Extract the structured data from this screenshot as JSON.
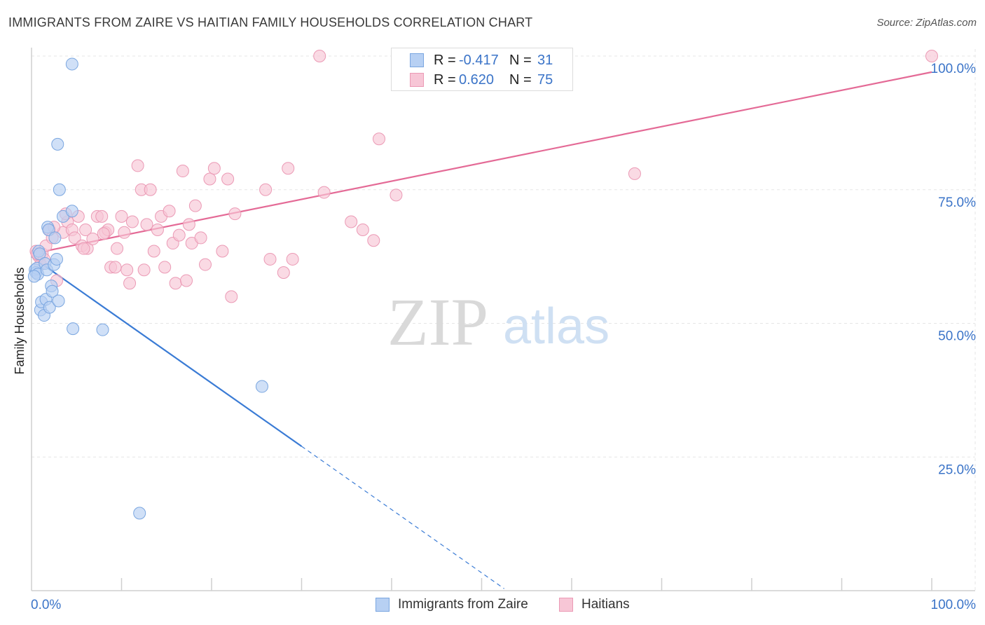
{
  "title": "IMMIGRANTS FROM ZAIRE VS HAITIAN FAMILY HOUSEHOLDS CORRELATION CHART",
  "source": "Source: ZipAtlas.com",
  "watermark": {
    "zip": "ZIP",
    "atlas": "atlas"
  },
  "colors": {
    "blue_fill": "#b7d0f3",
    "blue_stroke": "#7aa6e0",
    "blue_line": "#3a7bd5",
    "pink_fill": "#f7c6d6",
    "pink_stroke": "#eb9ab5",
    "pink_line": "#e46a96",
    "grid": "#e6e6e6",
    "axis_text": "#3b74c8"
  },
  "legend": {
    "rows": [
      {
        "r_label": "R =",
        "r_value": "-0.417",
        "n_label": "N =",
        "n_value": "31"
      },
      {
        "r_label": "R =",
        "r_value": "0.620",
        "n_label": "N =",
        "n_value": "75"
      }
    ]
  },
  "bottom_legend": {
    "series1": "Immigrants from Zaire",
    "series2": "Haitians"
  },
  "chart_data": {
    "type": "scatter",
    "title": "IMMIGRANTS FROM ZAIRE VS HAITIAN FAMILY HOUSEHOLDS CORRELATION CHART",
    "xlabel": "",
    "ylabel": "Family Households",
    "xlim": [
      0,
      100
    ],
    "ylim": [
      0,
      100
    ],
    "x_tick_labels": [
      "0.0%",
      "100.0%"
    ],
    "y_tick_labels": [
      "25.0%",
      "50.0%",
      "75.0%",
      "100.0%"
    ],
    "y_ticks": [
      25,
      50,
      75,
      100
    ],
    "grid": true,
    "series": [
      {
        "name": "Immigrants from Zaire",
        "color": "#b7d0f3",
        "r": -0.417,
        "n": 31,
        "trend": {
          "x0": 0,
          "y0": 62.5,
          "x1": 30,
          "y1": 27.0,
          "dash_to_x": 52.5
        },
        "points": [
          [
            0.4,
            60.0
          ],
          [
            0.5,
            59.5
          ],
          [
            0.6,
            60.3
          ],
          [
            0.7,
            59.2
          ],
          [
            0.8,
            63.5
          ],
          [
            0.9,
            63.0
          ],
          [
            1.0,
            52.5
          ],
          [
            1.1,
            54.0
          ],
          [
            1.4,
            51.5
          ],
          [
            1.5,
            61.2
          ],
          [
            1.6,
            54.5
          ],
          [
            1.7,
            60.0
          ],
          [
            1.8,
            68.0
          ],
          [
            1.9,
            67.5
          ],
          [
            2.0,
            53.0
          ],
          [
            2.2,
            57.0
          ],
          [
            2.3,
            56.0
          ],
          [
            2.5,
            61.0
          ],
          [
            2.6,
            66.0
          ],
          [
            2.8,
            62.0
          ],
          [
            3.0,
            54.2
          ],
          [
            3.1,
            75.0
          ],
          [
            2.9,
            83.5
          ],
          [
            3.5,
            70.0
          ],
          [
            4.5,
            71.0
          ],
          [
            4.6,
            49.0
          ],
          [
            4.5,
            98.5
          ],
          [
            7.9,
            48.8
          ],
          [
            25.6,
            38.2
          ],
          [
            12.0,
            14.5
          ],
          [
            0.3,
            58.8
          ]
        ]
      },
      {
        "name": "Haitians",
        "color": "#f7c6d6",
        "r": 0.62,
        "n": 75,
        "trend": {
          "x0": 0,
          "y0": 63.0,
          "x1": 100,
          "y1": 97.0
        },
        "points": [
          [
            0.5,
            63.5
          ],
          [
            0.8,
            62.5
          ],
          [
            1.0,
            61.0
          ],
          [
            1.2,
            63.0
          ],
          [
            1.6,
            64.5
          ],
          [
            2.0,
            67.5
          ],
          [
            2.3,
            66.0
          ],
          [
            2.8,
            58.0
          ],
          [
            3.5,
            67.0
          ],
          [
            4.0,
            69.0
          ],
          [
            4.5,
            67.5
          ],
          [
            4.8,
            66.0
          ],
          [
            5.2,
            70.0
          ],
          [
            5.6,
            64.5
          ],
          [
            6.0,
            67.5
          ],
          [
            6.2,
            64.0
          ],
          [
            6.8,
            65.8
          ],
          [
            7.3,
            70.0
          ],
          [
            7.8,
            70.0
          ],
          [
            8.2,
            67.0
          ],
          [
            8.5,
            67.5
          ],
          [
            8.8,
            60.5
          ],
          [
            9.3,
            60.5
          ],
          [
            9.5,
            64.0
          ],
          [
            10.0,
            70.0
          ],
          [
            10.3,
            67.0
          ],
          [
            10.6,
            60.0
          ],
          [
            10.9,
            57.5
          ],
          [
            11.2,
            69.0
          ],
          [
            11.8,
            79.5
          ],
          [
            12.2,
            75.0
          ],
          [
            12.5,
            60.0
          ],
          [
            12.8,
            68.5
          ],
          [
            13.2,
            75.0
          ],
          [
            13.6,
            63.5
          ],
          [
            14.0,
            67.5
          ],
          [
            14.4,
            70.0
          ],
          [
            14.8,
            60.5
          ],
          [
            15.3,
            71.0
          ],
          [
            15.7,
            65.0
          ],
          [
            16.0,
            57.5
          ],
          [
            16.4,
            66.5
          ],
          [
            16.8,
            78.5
          ],
          [
            17.2,
            58.0
          ],
          [
            17.5,
            68.5
          ],
          [
            17.8,
            65.0
          ],
          [
            18.2,
            72.0
          ],
          [
            18.8,
            66.0
          ],
          [
            19.3,
            61.0
          ],
          [
            19.8,
            77.0
          ],
          [
            20.3,
            79.0
          ],
          [
            21.2,
            63.5
          ],
          [
            21.8,
            77.0
          ],
          [
            22.2,
            55.0
          ],
          [
            22.6,
            70.5
          ],
          [
            26.0,
            75.0
          ],
          [
            26.5,
            62.0
          ],
          [
            28.0,
            59.5
          ],
          [
            28.5,
            79.0
          ],
          [
            29.0,
            62.0
          ],
          [
            32.0,
            100.0
          ],
          [
            32.5,
            74.5
          ],
          [
            35.5,
            69.0
          ],
          [
            36.8,
            67.5
          ],
          [
            38.0,
            65.5
          ],
          [
            38.6,
            84.5
          ],
          [
            40.5,
            74.0
          ],
          [
            67.0,
            78.0
          ],
          [
            100.0,
            100.0
          ],
          [
            0.6,
            63.0
          ],
          [
            1.4,
            62.0
          ],
          [
            2.5,
            68.0
          ],
          [
            3.8,
            70.5
          ],
          [
            5.8,
            64.0
          ],
          [
            8.0,
            66.8
          ]
        ]
      }
    ]
  }
}
